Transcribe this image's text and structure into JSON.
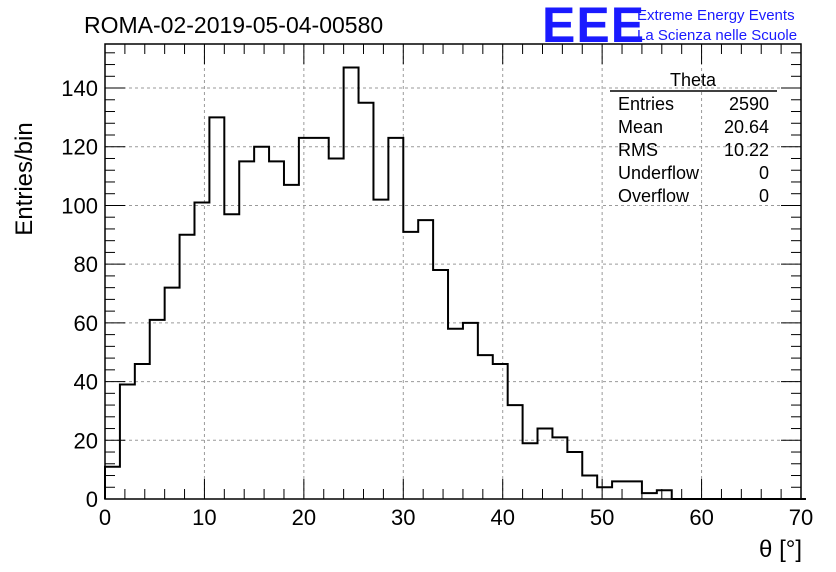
{
  "chart_data": {
    "type": "histogram",
    "title": "ROMA-02-2019-05-04-00580",
    "xlabel": "θ [°]",
    "ylabel": "Entries/bin",
    "xlim": [
      0,
      70
    ],
    "ylim": [
      0,
      155
    ],
    "grid": true,
    "x_ticks": [
      "0",
      "10",
      "20",
      "30",
      "40",
      "50",
      "60",
      "70"
    ],
    "y_ticks": [
      "0",
      "20",
      "40",
      "60",
      "80",
      "100",
      "120",
      "140"
    ],
    "bin_width": 1.5,
    "bin_edges_start": 0,
    "values": [
      11,
      39,
      46,
      61,
      72,
      90,
      101,
      130,
      97,
      115,
      120,
      115,
      107,
      123,
      123,
      116,
      147,
      135,
      102,
      123,
      91,
      95,
      78,
      58,
      60,
      49,
      46,
      32,
      19,
      24,
      21,
      16,
      8,
      4,
      6,
      6,
      2,
      3,
      0,
      0,
      0,
      0,
      0,
      0,
      0,
      0,
      0
    ],
    "stats_box": {
      "name": "Theta",
      "rows": [
        {
          "label": "Entries",
          "value": "2590"
        },
        {
          "label": "Mean",
          "value": "20.64"
        },
        {
          "label": "RMS",
          "value": "10.22"
        },
        {
          "label": "Underflow",
          "value": "0"
        },
        {
          "label": "Overflow",
          "value": "0"
        }
      ]
    }
  },
  "logo": {
    "mark": "EEE",
    "line1": "Extreme Energy Events",
    "line2": "La Scienza nelle Scuole"
  },
  "colors": {
    "line": "#000000",
    "logo": "#1a1aff",
    "grid": "#9a9a9a"
  }
}
